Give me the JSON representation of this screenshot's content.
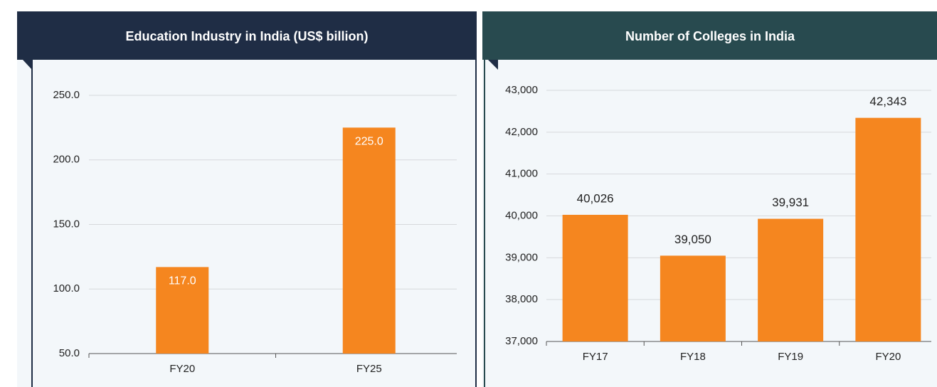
{
  "chart_data": [
    {
      "type": "bar",
      "title": "Education Industry in India (US$ billion)",
      "categories": [
        "FY20",
        "FY25"
      ],
      "values": [
        117,
        225
      ],
      "value_labels": [
        "117.0",
        "225.0"
      ],
      "color": "#f5861f",
      "ylim": [
        50,
        250
      ],
      "yticks": [
        {
          "value": 50,
          "label": "50.0"
        },
        {
          "value": 100,
          "label": "100.0"
        },
        {
          "value": 150,
          "label": "150.0"
        },
        {
          "value": 200,
          "label": "200.0"
        },
        {
          "value": 250,
          "label": "250.0"
        }
      ],
      "grid": true
    },
    {
      "type": "bar",
      "title": "Number of Colleges in India",
      "categories": [
        "FY17",
        "FY18",
        "FY19",
        "FY20"
      ],
      "values": [
        40026,
        39050,
        39931,
        42343
      ],
      "value_labels": [
        "40,026",
        "39,050",
        "39,931",
        "42,343"
      ],
      "color": "#f5861f",
      "ylim": [
        37000,
        43000
      ],
      "yticks": [
        {
          "value": 37000,
          "label": "37,000"
        },
        {
          "value": 38000,
          "label": "38,000"
        },
        {
          "value": 39000,
          "label": "39,000"
        },
        {
          "value": 40000,
          "label": "40,000"
        },
        {
          "value": 41000,
          "label": "41,000"
        },
        {
          "value": 42000,
          "label": "42,000"
        },
        {
          "value": 43000,
          "label": "43,000"
        }
      ],
      "grid": true
    }
  ]
}
